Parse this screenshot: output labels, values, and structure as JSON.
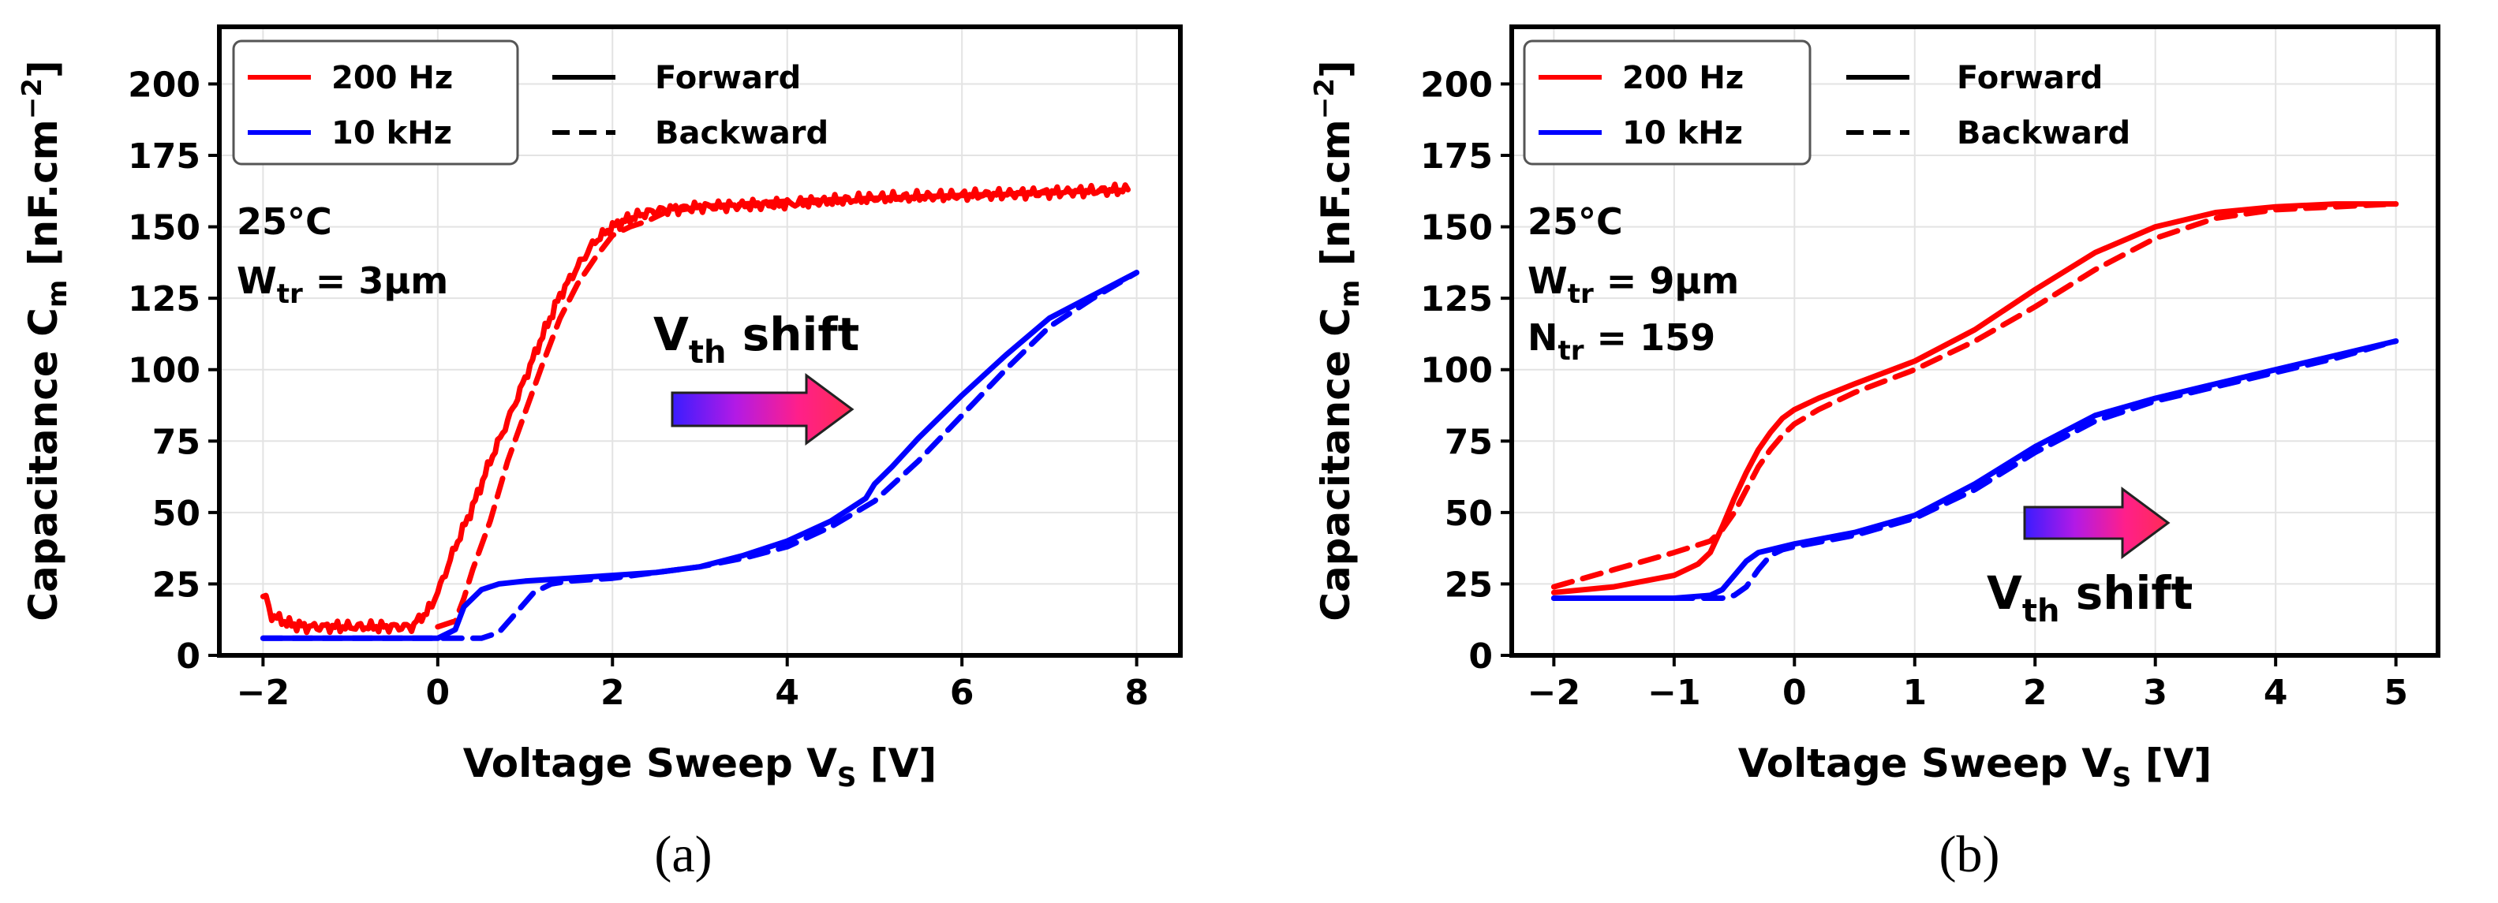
{
  "chart_data": [
    {
      "type": "line",
      "panel_label": "(a)",
      "title": "",
      "xlabel": "Voltage Sweep  V",
      "xlabel_sub": "S",
      "xlabel_unit": " [V]",
      "ylabel": "Capacitance  C",
      "ylabel_sub": "m",
      "ylabel_unit": " [nF.cm",
      "ylabel_sup": "−2",
      "ylabel_end": "]",
      "xlim": [
        -2.5,
        8.5
      ],
      "ylim": [
        0,
        220
      ],
      "xticks": [
        -2,
        0,
        2,
        4,
        6,
        8
      ],
      "xtick_labels": [
        "−2",
        "0",
        "2",
        "4",
        "6",
        "8"
      ],
      "yticks": [
        0,
        25,
        50,
        75,
        100,
        125,
        150,
        175,
        200
      ],
      "ytick_labels": [
        "0",
        "25",
        "50",
        "75",
        "100",
        "125",
        "150",
        "175",
        "200"
      ],
      "grid": true,
      "legend": {
        "position": "top-left",
        "freq": [
          {
            "label": "200 Hz",
            "color": "#ff0000"
          },
          {
            "label": "10 kHz",
            "color": "#0000ff"
          }
        ],
        "style": [
          {
            "label": "Forward",
            "dash": "solid"
          },
          {
            "label": "Backward",
            "dash": "dashed"
          }
        ]
      },
      "annotations": {
        "temp": "25°C",
        "w_main": "W",
        "w_sub": "tr",
        "w_rest": " = 3μm"
      },
      "shift_label": {
        "main": "V",
        "sub": "th",
        "rest": " shift"
      },
      "series": [
        {
          "name": "200 Hz Forward",
          "color": "#ff0000",
          "dash": "solid",
          "noise": true,
          "x": [
            -2.0,
            -1.9,
            -1.7,
            -1.5,
            -1.0,
            -0.5,
            -0.3,
            -0.1,
            0.0,
            0.2,
            0.4,
            0.6,
            0.8,
            1.0,
            1.2,
            1.4,
            1.6,
            1.8,
            2.0,
            2.2,
            2.4,
            2.6,
            3.0,
            4.0,
            5.0,
            6.0,
            7.0,
            7.9
          ],
          "y": [
            22,
            14,
            11,
            10,
            10,
            10,
            10,
            16,
            22,
            38,
            52,
            68,
            82,
            97,
            112,
            126,
            136,
            145,
            150,
            153,
            155,
            156,
            157,
            158,
            160,
            161,
            162,
            163
          ]
        },
        {
          "name": "200 Hz Backward",
          "color": "#ff0000",
          "dash": "dashed",
          "noise": false,
          "x": [
            0.0,
            0.2,
            0.3,
            0.4,
            0.6,
            0.8,
            1.0,
            1.2,
            1.4,
            1.6,
            1.8,
            2.0,
            2.2,
            2.4,
            2.6,
            3.0,
            4.0,
            5.0,
            6.0,
            7.0,
            7.9
          ],
          "y": [
            10,
            12,
            20,
            30,
            47,
            68,
            85,
            102,
            118,
            130,
            139,
            147,
            150,
            152,
            155,
            157,
            159,
            160,
            161,
            162,
            163
          ]
        },
        {
          "name": "10 kHz Forward",
          "color": "#0000ff",
          "dash": "solid",
          "noise": false,
          "x": [
            -2.0,
            -1.0,
            0.0,
            0.2,
            0.3,
            0.5,
            0.7,
            1.0,
            1.5,
            2.0,
            2.5,
            3.0,
            3.5,
            4.0,
            4.5,
            4.9,
            5.0,
            5.2,
            5.5,
            6.0,
            6.5,
            7.0,
            7.5,
            8.0
          ],
          "y": [
            6,
            6,
            6,
            9,
            17,
            23,
            25,
            26,
            27,
            28,
            29,
            31,
            35,
            40,
            47,
            55,
            60,
            66,
            76,
            91,
            105,
            118,
            126,
            134
          ]
        },
        {
          "name": "10 kHz Backward",
          "color": "#0000ff",
          "dash": "dashed",
          "noise": false,
          "x": [
            -2.0,
            -1.0,
            0.0,
            0.5,
            0.7,
            0.9,
            1.1,
            1.3,
            1.5,
            2.0,
            2.5,
            3.0,
            3.5,
            4.0,
            4.5,
            5.0,
            5.5,
            6.0,
            6.5,
            7.0,
            7.5,
            8.0
          ],
          "y": [
            6,
            6,
            6,
            6,
            8,
            15,
            22,
            25,
            26,
            27,
            29,
            31,
            34,
            38,
            45,
            54,
            68,
            84,
            100,
            115,
            125,
            134
          ]
        }
      ]
    },
    {
      "type": "line",
      "panel_label": "(b)",
      "title": "",
      "xlabel": "Voltage Sweep  V",
      "xlabel_sub": "S",
      "xlabel_unit": " [V]",
      "ylabel": "Capacitance  C",
      "ylabel_sub": "m",
      "ylabel_unit": " [nF.cm",
      "ylabel_sup": "−2",
      "ylabel_end": "]",
      "xlim": [
        -2.35,
        5.35
      ],
      "ylim": [
        0,
        220
      ],
      "xticks": [
        -2,
        -1,
        0,
        1,
        2,
        3,
        4,
        5
      ],
      "xtick_labels": [
        "−2",
        "−1",
        "0",
        "1",
        "2",
        "3",
        "4",
        "5"
      ],
      "yticks": [
        0,
        25,
        50,
        75,
        100,
        125,
        150,
        175,
        200
      ],
      "ytick_labels": [
        "0",
        "25",
        "50",
        "75",
        "100",
        "125",
        "150",
        "175",
        "200"
      ],
      "grid": true,
      "legend": {
        "position": "top-left",
        "freq": [
          {
            "label": "200 Hz",
            "color": "#ff0000"
          },
          {
            "label": "10 kHz",
            "color": "#0000ff"
          }
        ],
        "style": [
          {
            "label": "Forward",
            "dash": "solid"
          },
          {
            "label": "Backward",
            "dash": "dashed"
          }
        ]
      },
      "annotations": {
        "temp": "25°C",
        "w_main": "W",
        "w_sub": "tr",
        "w_rest": " = 9μm",
        "n_main": "N",
        "n_sub": "tr",
        "n_rest": " = 159"
      },
      "shift_label": {
        "main": "V",
        "sub": "th",
        "rest": " shift"
      },
      "series": [
        {
          "name": "200 Hz Forward",
          "color": "#ff0000",
          "dash": "solid",
          "noise": false,
          "x": [
            -2.0,
            -1.5,
            -1.0,
            -0.8,
            -0.7,
            -0.6,
            -0.5,
            -0.4,
            -0.3,
            -0.2,
            -0.1,
            0.0,
            0.2,
            0.5,
            1.0,
            1.5,
            2.0,
            2.5,
            3.0,
            3.5,
            4.0,
            4.5,
            5.0
          ],
          "y": [
            22,
            24,
            28,
            32,
            36,
            45,
            55,
            64,
            72,
            78,
            83,
            86,
            90,
            95,
            103,
            114,
            128,
            141,
            150,
            155,
            157,
            158,
            158
          ]
        },
        {
          "name": "200 Hz Backward",
          "color": "#ff0000",
          "dash": "dashed",
          "noise": false,
          "x": [
            -2.0,
            -1.5,
            -1.0,
            -0.7,
            -0.6,
            -0.5,
            -0.4,
            -0.3,
            -0.2,
            -0.1,
            0.0,
            0.2,
            0.5,
            1.0,
            1.5,
            2.0,
            2.5,
            3.0,
            3.5,
            4.0,
            4.5,
            5.0
          ],
          "y": [
            24,
            30,
            36,
            40,
            44,
            50,
            58,
            66,
            72,
            77,
            81,
            86,
            92,
            100,
            110,
            122,
            135,
            146,
            153,
            156,
            157,
            158
          ]
        },
        {
          "name": "10 kHz Forward",
          "color": "#0000ff",
          "dash": "solid",
          "noise": false,
          "x": [
            -2.0,
            -1.0,
            -0.7,
            -0.6,
            -0.5,
            -0.4,
            -0.3,
            -0.2,
            0.0,
            0.5,
            1.0,
            1.5,
            2.0,
            2.5,
            3.0,
            3.5,
            4.0,
            4.5,
            5.0
          ],
          "y": [
            20,
            20,
            21,
            23,
            28,
            33,
            36,
            37,
            39,
            43,
            49,
            60,
            73,
            84,
            90,
            95,
            100,
            105,
            110
          ]
        },
        {
          "name": "10 kHz Backward",
          "color": "#0000ff",
          "dash": "dashed",
          "noise": false,
          "x": [
            -2.0,
            -1.0,
            -0.6,
            -0.5,
            -0.4,
            -0.3,
            -0.2,
            -0.1,
            0.0,
            0.5,
            1.0,
            1.5,
            2.0,
            2.5,
            3.0,
            3.5,
            4.0,
            4.5,
            5.0
          ],
          "y": [
            20,
            20,
            20,
            21,
            24,
            30,
            35,
            37,
            38,
            42,
            48,
            58,
            71,
            82,
            89,
            94,
            99,
            104,
            110
          ]
        }
      ]
    }
  ]
}
